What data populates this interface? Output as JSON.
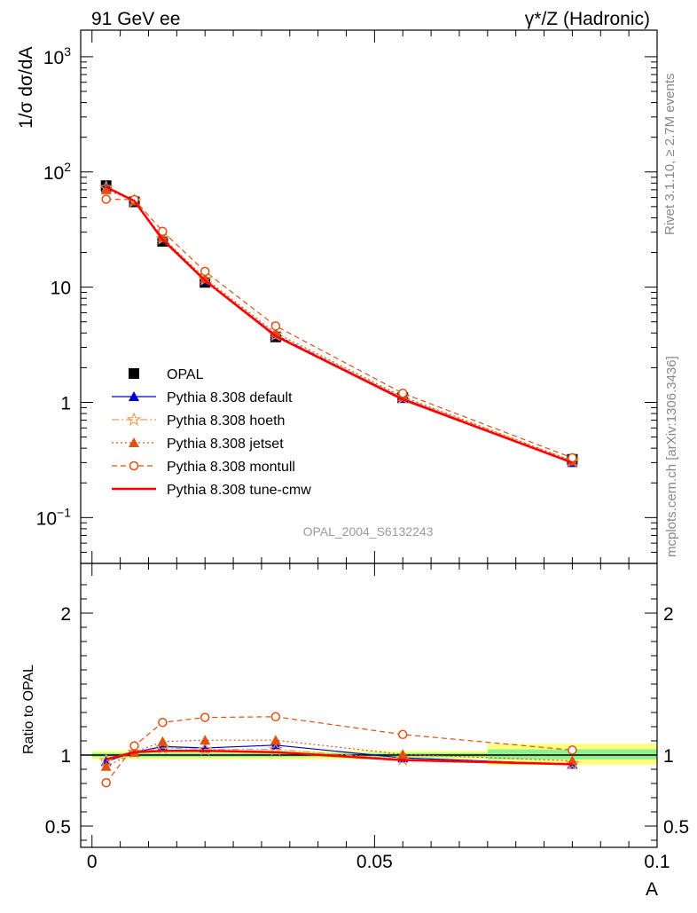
{
  "header": {
    "left": "91 GeV ee",
    "right": "γ*/Z (Hadronic)"
  },
  "side": {
    "rivet": "Rivet 3.1.10, ≥ 2.7M events",
    "mcplots": "mcplots.cern.ch [arXiv:1306.3436]"
  },
  "watermark": "OPAL_2004_S6132243",
  "chart_data": [
    {
      "type": "line",
      "ylabel": "1/σ dσ/dA",
      "yscale": "log",
      "ylim": [
        0.04,
        1700
      ],
      "xlim": [
        -0.002,
        0.1
      ],
      "y_ticks": [
        {
          "v": 0.1,
          "t": "10",
          "sup": "−1"
        },
        {
          "v": 1,
          "t": "1",
          "sup": ""
        },
        {
          "v": 10,
          "t": "10",
          "sup": ""
        },
        {
          "v": 100,
          "t": "10",
          "sup": "2"
        },
        {
          "v": 1000,
          "t": "10",
          "sup": "3"
        }
      ],
      "x": [
        0.0025,
        0.0075,
        0.0125,
        0.02,
        0.0325,
        0.055,
        0.085
      ],
      "data": {
        "name": "OPAL",
        "values": [
          76,
          55,
          25,
          11,
          3.7,
          1.1,
          0.32
        ]
      },
      "series": [
        {
          "name": "Pythia 8.308 default",
          "color": "#0000cc",
          "marker": "triangle",
          "values": [
            73,
            56,
            26.5,
            11.5,
            3.85,
            1.08,
            0.3
          ]
        },
        {
          "name": "Pythia 8.308 hoeth",
          "color": "#e8a060",
          "marker": "star",
          "values": [
            73,
            56,
            26.5,
            11.7,
            3.85,
            1.1,
            0.31
          ]
        },
        {
          "name": "Pythia 8.308 jetset",
          "color": "#e05010",
          "marker": "triangle",
          "values": [
            70,
            56,
            27,
            11.9,
            4.0,
            1.12,
            0.31
          ]
        },
        {
          "name": "Pythia 8.308 montull",
          "color": "#e05010",
          "marker": "circle",
          "values": [
            58,
            57.5,
            30.5,
            13.7,
            4.6,
            1.2,
            0.33
          ]
        },
        {
          "name": "Pythia 8.308 tune-cmw",
          "color": "#ff0000",
          "marker": "none",
          "values": [
            74,
            56,
            25.8,
            11.4,
            3.75,
            1.06,
            0.3
          ]
        }
      ]
    },
    {
      "type": "line",
      "ylabel": "Ratio to OPAL",
      "ylim": [
        0.35,
        2.35
      ],
      "xlim": [
        -0.002,
        0.1
      ],
      "xlabel": "A",
      "y_ticks": [
        0.5,
        1,
        2
      ],
      "y_tick_labels": [
        "0.5",
        "1",
        "2"
      ],
      "x_ticks": [
        0,
        0.05,
        0.1
      ],
      "x_tick_labels": [
        "0",
        "0.05",
        "0.1"
      ],
      "x": [
        0.0025,
        0.0075,
        0.0125,
        0.02,
        0.0325,
        0.055,
        0.085
      ],
      "bands": [
        {
          "x0": 0.0,
          "x1": 0.07,
          "lo": 0.97,
          "hi": 1.03,
          "color": "#ffff80"
        },
        {
          "x0": 0.07,
          "x1": 0.1,
          "lo": 0.93,
          "hi": 1.08,
          "color": "#ffff80"
        },
        {
          "x0": 0.0,
          "x1": 0.07,
          "lo": 0.985,
          "hi": 1.015,
          "color": "#90f090"
        },
        {
          "x0": 0.07,
          "x1": 0.1,
          "lo": 0.97,
          "hi": 1.04,
          "color": "#90f090"
        }
      ],
      "series": [
        {
          "name": "Pythia 8.308 default",
          "values": [
            0.955,
            1.02,
            1.06,
            1.05,
            1.07,
            0.98,
            0.935
          ]
        },
        {
          "name": "Pythia 8.308 hoeth",
          "values": [
            0.96,
            1.02,
            1.05,
            1.04,
            1.04,
            0.97,
            0.94
          ]
        },
        {
          "name": "Pythia 8.308 jetset",
          "values": [
            0.92,
            1.02,
            1.095,
            1.105,
            1.105,
            1.005,
            0.96
          ]
        },
        {
          "name": "Pythia 8.308 montull",
          "values": [
            0.805,
            1.065,
            1.23,
            1.265,
            1.27,
            1.145,
            1.035
          ]
        },
        {
          "name": "Pythia 8.308 tune-cmw",
          "values": [
            0.97,
            1.02,
            1.03,
            1.03,
            1.02,
            0.965,
            0.935
          ]
        }
      ]
    }
  ]
}
